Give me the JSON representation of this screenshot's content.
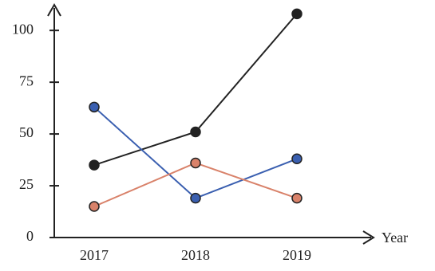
{
  "chart_data": {
    "type": "line",
    "x_label": "Year",
    "categories": [
      "2017",
      "2018",
      "2019"
    ],
    "series": [
      {
        "color": "#222222",
        "values": [
          35,
          51,
          108
        ]
      },
      {
        "color": "#3a5fb0",
        "values": [
          63,
          19,
          38
        ]
      },
      {
        "color": "#d9826a",
        "values": [
          15,
          36,
          19
        ]
      }
    ],
    "ylim": [
      0,
      112
    ],
    "yticks": [
      0,
      25,
      50,
      75,
      100
    ],
    "grid": false
  }
}
